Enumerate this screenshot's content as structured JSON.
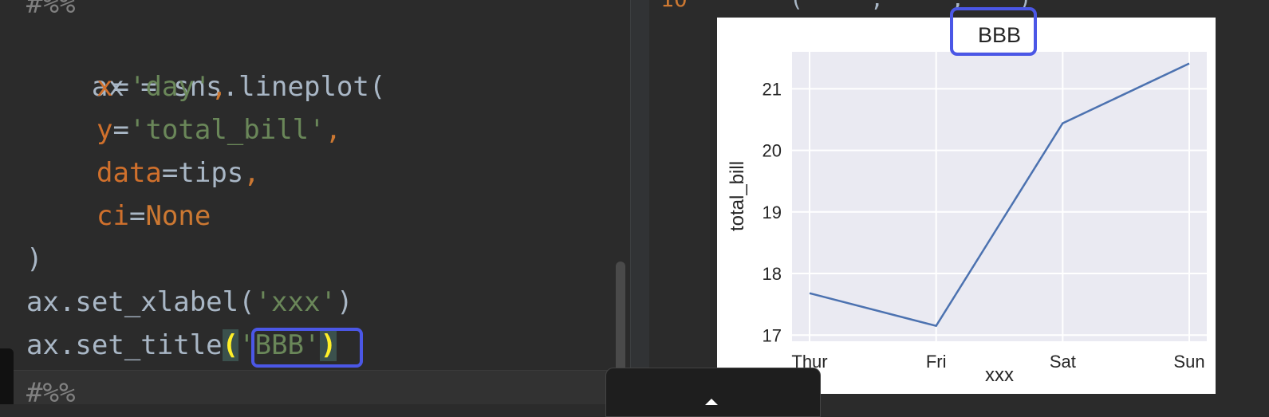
{
  "editor": {
    "lines": {
      "cell_marker_top": "#%%",
      "l1_a": "ax = sns.lineplot(",
      "l2_param": "x",
      "l2_eq": "=",
      "l2_str": "'day'",
      "l2_comma": ",",
      "l3_param": "y",
      "l3_eq": "=",
      "l3_str": "'total_bill'",
      "l3_comma": ",",
      "l4_param": "data",
      "l4_eq": "=",
      "l4_val": "tips",
      "l4_comma": ",",
      "l5_param": "ci",
      "l5_eq": "=",
      "l5_kw": "None",
      "l6": ")",
      "l7_a": "ax.set_xlabel(",
      "l7_str": "'xxx'",
      "l7_b": ")",
      "l8_a": "ax.set_title",
      "l8_open": "(",
      "l8_str": "'BBB'",
      "l8_close": ")",
      "cell_marker_bottom": "#%%"
    }
  },
  "output": {
    "top_partial_a": "10",
    "top_partial_b": "(     ,     ,    )"
  },
  "colors": {
    "highlight_box": "#4b57e6",
    "line_series": "#4c72b0",
    "plot_bg": "#eaeaf2"
  },
  "chart_data": {
    "type": "line",
    "title": "BBB",
    "xlabel": "xxx",
    "ylabel": "total_bill",
    "categories": [
      "Thur",
      "Fri",
      "Sat",
      "Sun"
    ],
    "values": [
      17.68,
      17.15,
      20.44,
      21.41
    ],
    "ylim": [
      16.9,
      21.6
    ],
    "yticks": [
      17,
      18,
      19,
      20,
      21
    ],
    "grid": true
  }
}
